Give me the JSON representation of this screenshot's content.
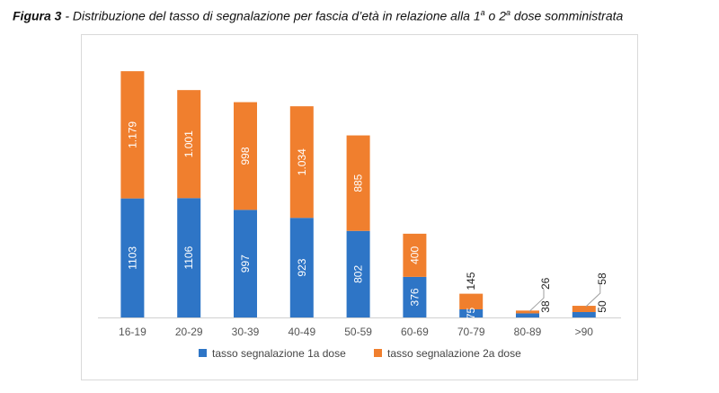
{
  "caption": {
    "label": "Figura 3",
    "separator": " - ",
    "text_before": "Distribuzione del tasso di segnalazione per fascia d’età in relazione alla 1",
    "sup1": "a",
    "text_middle": " o 2",
    "sup2": "a",
    "text_after": " dose somministrata"
  },
  "colors": {
    "dose1": "#2e75c6",
    "dose2": "#f07f2e",
    "axis": "#d0d0d0",
    "leader": "#9e9e9e"
  },
  "chart_data": {
    "type": "bar",
    "stacked": true,
    "categories": [
      "16-19",
      "20-29",
      "30-39",
      "40-49",
      "50-59",
      "60-69",
      "70-79",
      "80-89",
      ">90"
    ],
    "series": [
      {
        "name": "tasso segnalazione 1a dose",
        "values": [
          1103,
          1106,
          997,
          923,
          802,
          376,
          75,
          38,
          50
        ],
        "labels": [
          "1103",
          "1106",
          "997",
          "923",
          "802",
          "376",
          "75",
          "38",
          "50"
        ]
      },
      {
        "name": "tasso segnalazione 2a dose",
        "values": [
          1179,
          1001,
          998,
          1034,
          885,
          400,
          145,
          26,
          58
        ],
        "labels": [
          "1.179",
          "1.001",
          "998",
          "1.034",
          "885",
          "400",
          "145",
          "26",
          "58"
        ]
      }
    ],
    "ylim": [
      0,
      2300
    ],
    "grid": false,
    "legend_position": "bottom",
    "xlabel": "",
    "ylabel": ""
  }
}
